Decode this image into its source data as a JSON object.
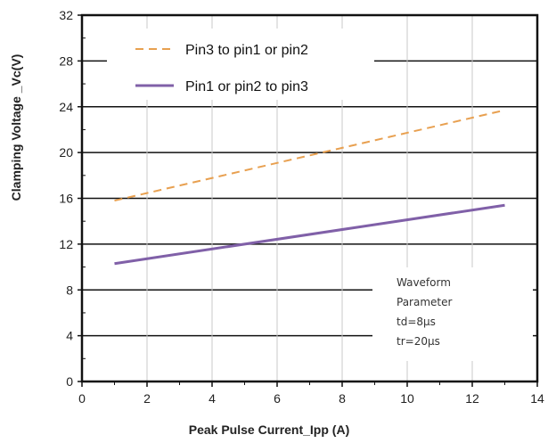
{
  "chart_data": {
    "type": "line",
    "xlabel": "Peak Pulse Current_Ipp (A)",
    "ylabel": "Clamping Voltage _Vc(V)",
    "xlim": [
      0,
      14
    ],
    "ylim": [
      0,
      32
    ],
    "xticks": [
      0,
      2,
      4,
      6,
      8,
      10,
      12,
      14
    ],
    "yticks": [
      0,
      4,
      8,
      12,
      16,
      20,
      24,
      28,
      32
    ],
    "grid": true,
    "legend_position": "top-left",
    "series": [
      {
        "name": "Pin3 to pin1 or pin2",
        "style": "dashed",
        "color": "#E8A050",
        "x": [
          1,
          13
        ],
        "y": [
          15.8,
          23.7
        ]
      },
      {
        "name": "Pin1 or pin2 to pin3",
        "style": "solid",
        "color": "#8060A8",
        "x": [
          1,
          13
        ],
        "y": [
          10.3,
          15.4
        ]
      }
    ],
    "annotation": {
      "lines": [
        "Waveform",
        "Parameter",
        "td=8µs",
        "tr=20µs"
      ]
    }
  }
}
